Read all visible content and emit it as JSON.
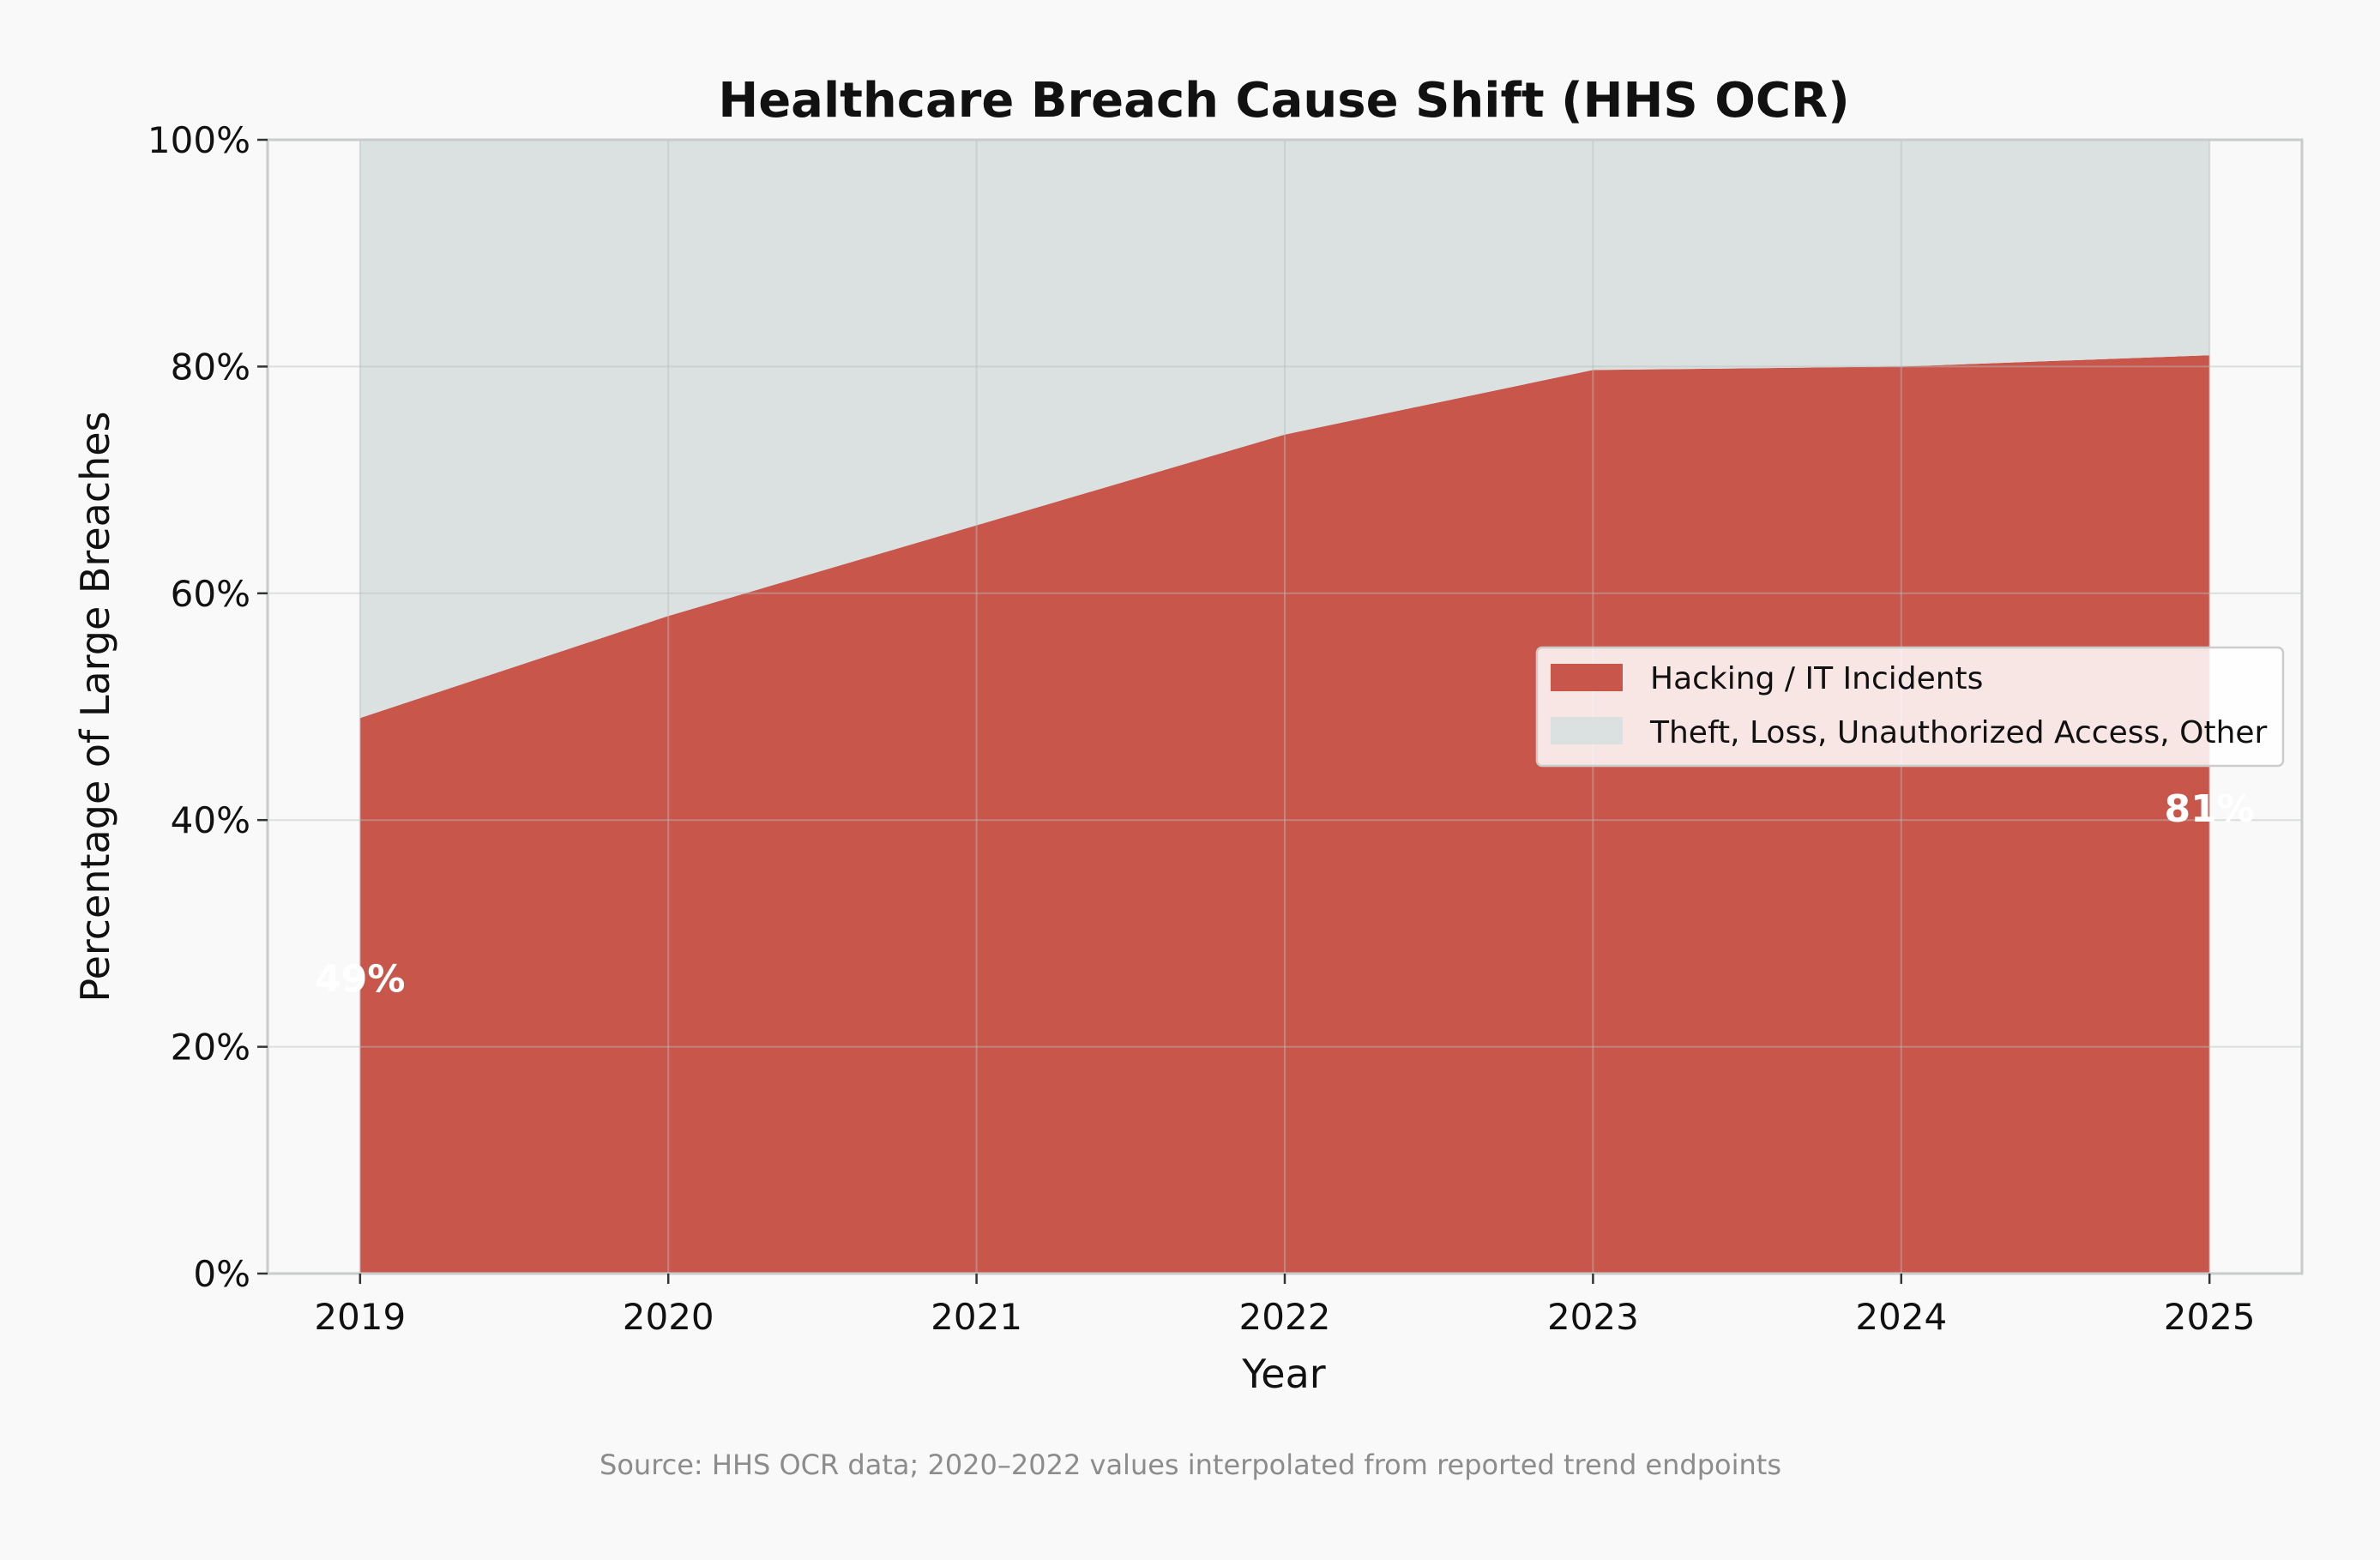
{
  "chart_data": {
    "type": "area",
    "stacked": true,
    "title": "Healthcare Breach Cause Shift (HHS OCR)",
    "xlabel": "Year",
    "ylabel": "Percentage of Large Breaches",
    "x": [
      2019,
      2020,
      2021,
      2022,
      2023,
      2024,
      2025
    ],
    "x_tick_labels": [
      "2019",
      "2020",
      "2021",
      "2022",
      "2023",
      "2024",
      "2025"
    ],
    "xlim": [
      2018.7,
      2025.3
    ],
    "ylim": [
      0,
      100
    ],
    "y_ticks": [
      0,
      20,
      40,
      60,
      80,
      100
    ],
    "y_tick_labels": [
      "0%",
      "20%",
      "40%",
      "60%",
      "80%",
      "100%"
    ],
    "grid": true,
    "legend_position": "center-right",
    "series": [
      {
        "name": "Hacking / IT Incidents",
        "values": [
          49,
          58,
          66,
          74,
          79.7,
          80,
          81
        ],
        "color": "#c9564b"
      },
      {
        "name": "Theft, Loss, Unauthorized Access, Other",
        "values": [
          51,
          42,
          34,
          26,
          20.3,
          20,
          19
        ],
        "color": "#dbe0e0"
      }
    ],
    "annotations": [
      {
        "text": "49%",
        "x": 2019,
        "y": 26
      },
      {
        "text": "81%",
        "x": 2025,
        "y": 41
      }
    ],
    "source_note": "Source: HHS OCR data; 2020–2022 values interpolated from reported trend endpoints"
  }
}
